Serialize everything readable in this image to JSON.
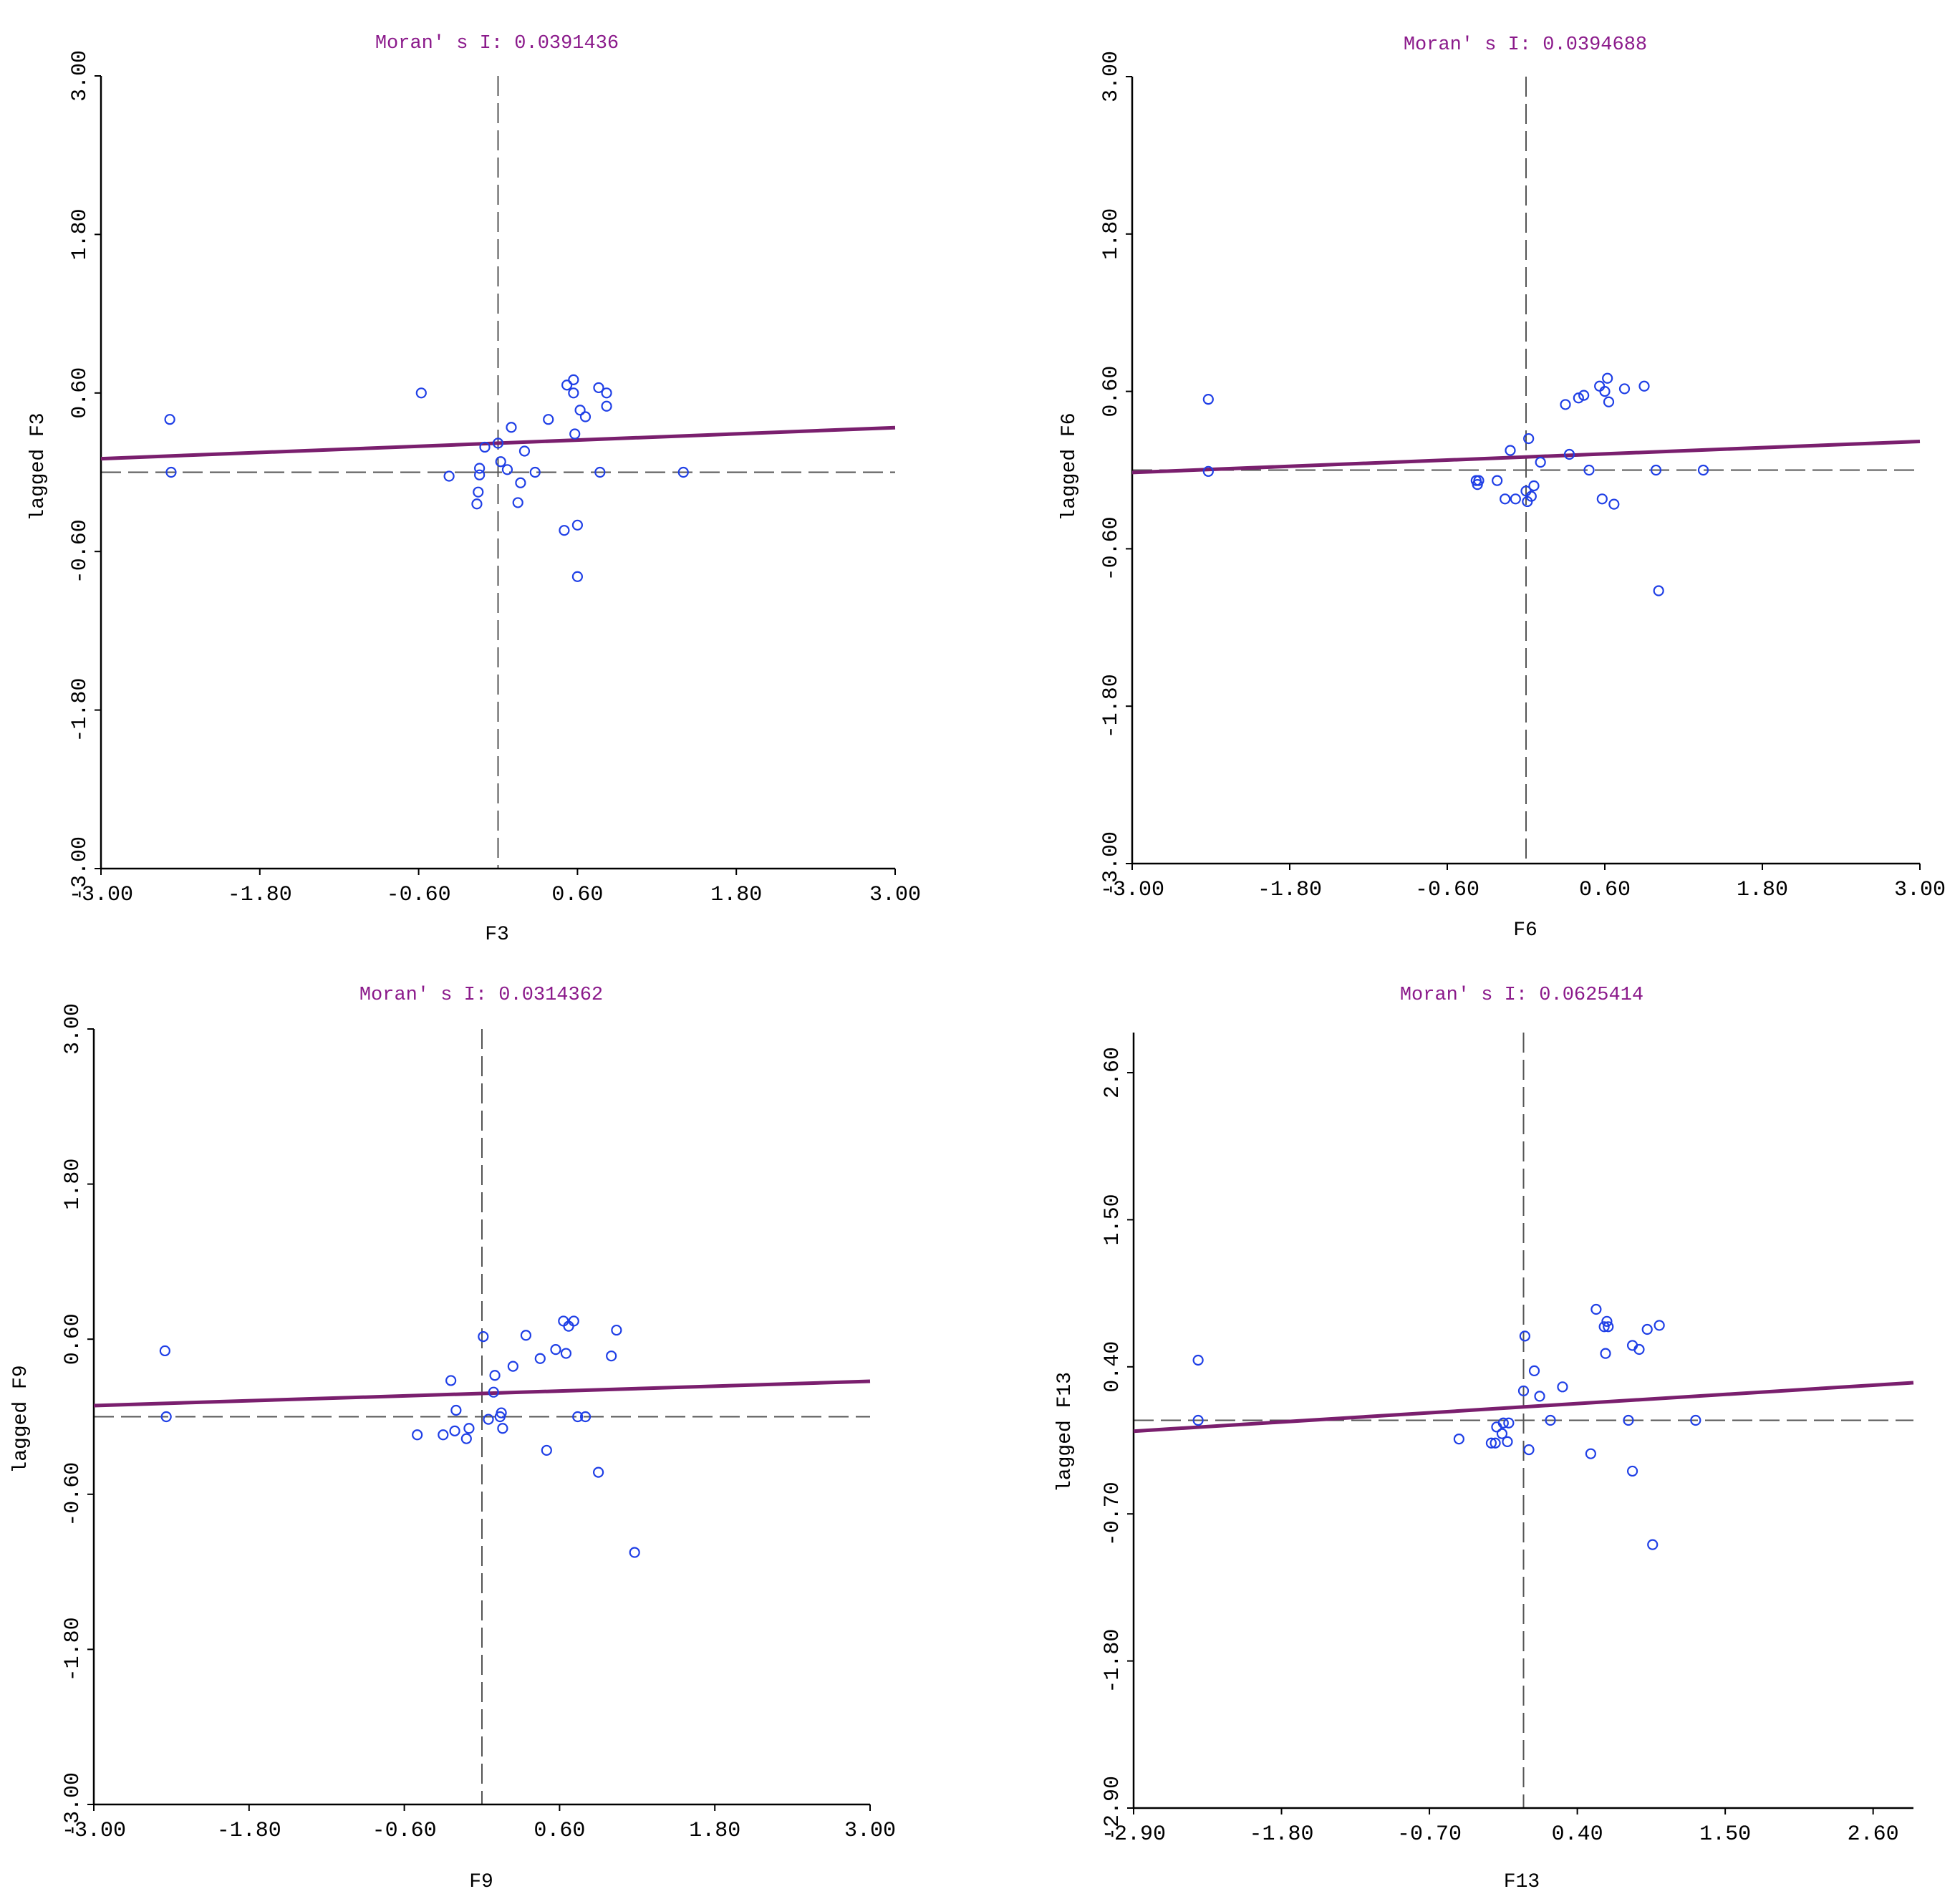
{
  "colors": {
    "title": "#8b1a8b",
    "points": "#1f3fe6",
    "regression": "#7a1f6e",
    "axes": "#000000",
    "reference": "#555555"
  },
  "chart_data": [
    {
      "type": "scatter",
      "title": "Moran' s I: 0.0391436",
      "xlabel": "F3",
      "ylabel": "lagged F3",
      "xlim": [
        -3.0,
        3.0
      ],
      "ylim": [
        -3.0,
        3.0
      ],
      "xticks": [
        "-3.00",
        "-1.80",
        "-0.60",
        "0.60",
        "1.80",
        "3.00"
      ],
      "yticks": [
        "-3.00",
        "-1.80",
        "-0.60",
        "0.60",
        "1.80",
        "3.00"
      ],
      "regression": {
        "slope": 0.0391436,
        "intercept": 0.22
      },
      "points": [
        [
          -2.48,
          0.4
        ],
        [
          -2.47,
          0.0
        ],
        [
          -0.58,
          0.6
        ],
        [
          -0.37,
          -0.03
        ],
        [
          -0.16,
          -0.24
        ],
        [
          -0.15,
          -0.15
        ],
        [
          -0.14,
          -0.02
        ],
        [
          -0.14,
          0.03
        ],
        [
          -0.1,
          0.19
        ],
        [
          0.0,
          0.22
        ],
        [
          0.02,
          0.08
        ],
        [
          0.07,
          0.02
        ],
        [
          0.1,
          0.34
        ],
        [
          0.15,
          -0.23
        ],
        [
          0.17,
          -0.08
        ],
        [
          0.2,
          0.16
        ],
        [
          0.28,
          0.0
        ],
        [
          0.38,
          0.4
        ],
        [
          0.5,
          -0.44
        ],
        [
          0.52,
          0.66
        ],
        [
          0.57,
          0.6
        ],
        [
          0.57,
          0.7
        ],
        [
          0.58,
          0.29
        ],
        [
          0.6,
          -0.4
        ],
        [
          0.6,
          -0.79
        ],
        [
          0.62,
          0.47
        ],
        [
          0.66,
          0.42
        ],
        [
          0.77,
          0.0
        ],
        [
          0.76,
          0.64
        ],
        [
          0.82,
          0.6
        ],
        [
          0.82,
          0.5
        ],
        [
          1.4,
          0.0
        ]
      ]
    },
    {
      "type": "scatter",
      "title": "Moran' s I: 0.0394688",
      "xlabel": "F6",
      "ylabel": "lagged F6",
      "xlim": [
        -3.0,
        3.0
      ],
      "ylim": [
        -3.0,
        3.0
      ],
      "xticks": [
        "-3.00",
        "-1.80",
        "-0.60",
        "0.60",
        "1.80",
        "3.00"
      ],
      "yticks": [
        "-3.00",
        "-1.80",
        "-0.60",
        "0.60",
        "1.80",
        "3.00"
      ],
      "regression": {
        "slope": 0.0394688,
        "intercept": 0.1
      },
      "points": [
        [
          -2.42,
          0.54
        ],
        [
          -2.42,
          -0.01
        ],
        [
          -0.38,
          -0.08
        ],
        [
          -0.37,
          -0.11
        ],
        [
          -0.36,
          -0.08
        ],
        [
          -0.22,
          -0.08
        ],
        [
          -0.16,
          -0.22
        ],
        [
          -0.12,
          0.15
        ],
        [
          -0.08,
          -0.22
        ],
        [
          0.0,
          -0.16
        ],
        [
          0.01,
          -0.24
        ],
        [
          0.02,
          0.24
        ],
        [
          0.04,
          -0.2
        ],
        [
          0.06,
          -0.12
        ],
        [
          0.11,
          0.06
        ],
        [
          0.3,
          0.5
        ],
        [
          0.33,
          0.12
        ],
        [
          0.4,
          0.55
        ],
        [
          0.44,
          0.57
        ],
        [
          0.48,
          0.0
        ],
        [
          0.56,
          0.64
        ],
        [
          0.58,
          -0.22
        ],
        [
          0.6,
          0.6
        ],
        [
          0.62,
          0.7
        ],
        [
          0.63,
          0.52
        ],
        [
          0.67,
          -0.26
        ],
        [
          0.75,
          0.62
        ],
        [
          0.9,
          0.64
        ],
        [
          0.99,
          0.0
        ],
        [
          1.01,
          -0.92
        ],
        [
          1.35,
          0.0
        ]
      ]
    },
    {
      "type": "scatter",
      "title": "Moran' s I: 0.0314362",
      "xlabel": "F9",
      "ylabel": "lagged F9",
      "xlim": [
        -3.0,
        3.0
      ],
      "ylim": [
        -3.0,
        3.0
      ],
      "xticks": [
        "-3.00",
        "-1.80",
        "-0.60",
        "0.60",
        "1.80",
        "3.00"
      ],
      "yticks": [
        "-3.00",
        "-1.80",
        "-0.60",
        "0.60",
        "1.80",
        "3.00"
      ],
      "regression": {
        "slope": 0.0314362,
        "intercept": 0.18
      },
      "points": [
        [
          -2.45,
          0.51
        ],
        [
          -2.44,
          0.0
        ],
        [
          -0.5,
          -0.14
        ],
        [
          -0.3,
          -0.14
        ],
        [
          -0.24,
          0.28
        ],
        [
          -0.2,
          0.05
        ],
        [
          -0.21,
          -0.11
        ],
        [
          -0.12,
          -0.17
        ],
        [
          -0.1,
          -0.09
        ],
        [
          0.01,
          0.62
        ],
        [
          0.05,
          -0.02
        ],
        [
          0.09,
          0.19
        ],
        [
          0.1,
          0.32
        ],
        [
          0.14,
          0.0
        ],
        [
          0.15,
          0.03
        ],
        [
          0.16,
          -0.09
        ],
        [
          0.24,
          0.39
        ],
        [
          0.34,
          0.63
        ],
        [
          0.45,
          0.45
        ],
        [
          0.5,
          -0.26
        ],
        [
          0.57,
          0.52
        ],
        [
          0.63,
          0.74
        ],
        [
          0.65,
          0.49
        ],
        [
          0.67,
          0.7
        ],
        [
          0.71,
          0.74
        ],
        [
          0.74,
          0.0
        ],
        [
          0.8,
          0.0
        ],
        [
          0.9,
          -0.43
        ],
        [
          1.0,
          0.47
        ],
        [
          1.04,
          0.67
        ],
        [
          1.18,
          -1.05
        ]
      ]
    },
    {
      "type": "scatter",
      "title": "Moran' s I: 0.0625414",
      "xlabel": "F13",
      "ylabel": "lagged F13",
      "xlim": [
        -2.9,
        2.9
      ],
      "ylim": [
        -2.9,
        2.9
      ],
      "xticks": [
        "-2.90",
        "-1.80",
        "-0.70",
        "0.40",
        "1.50",
        "2.60"
      ],
      "yticks": [
        "-2.90",
        "-1.80",
        "-0.70",
        "0.40",
        "1.50",
        "2.60"
      ],
      "regression": {
        "slope": 0.0625414,
        "intercept": 0.1
      },
      "points": [
        [
          -2.42,
          0.45
        ],
        [
          -2.42,
          0.0
        ],
        [
          -0.48,
          -0.14
        ],
        [
          -0.24,
          -0.17
        ],
        [
          -0.21,
          -0.17
        ],
        [
          -0.2,
          -0.05
        ],
        [
          -0.16,
          -0.1
        ],
        [
          -0.15,
          -0.02
        ],
        [
          -0.12,
          -0.16
        ],
        [
          -0.11,
          -0.02
        ],
        [
          0.0,
          0.22
        ],
        [
          0.01,
          0.63
        ],
        [
          0.04,
          -0.22
        ],
        [
          0.08,
          0.37
        ],
        [
          0.12,
          0.18
        ],
        [
          0.2,
          0.0
        ],
        [
          0.29,
          0.25
        ],
        [
          0.5,
          -0.25
        ],
        [
          0.54,
          0.83
        ],
        [
          0.6,
          0.7
        ],
        [
          0.61,
          0.5
        ],
        [
          0.62,
          0.74
        ],
        [
          0.63,
          0.7
        ],
        [
          0.78,
          0.0
        ],
        [
          0.81,
          -0.38
        ],
        [
          0.81,
          0.56
        ],
        [
          0.86,
          0.53
        ],
        [
          0.92,
          0.68
        ],
        [
          0.96,
          -0.93
        ],
        [
          1.01,
          0.71
        ],
        [
          1.28,
          0.0
        ]
      ]
    }
  ]
}
